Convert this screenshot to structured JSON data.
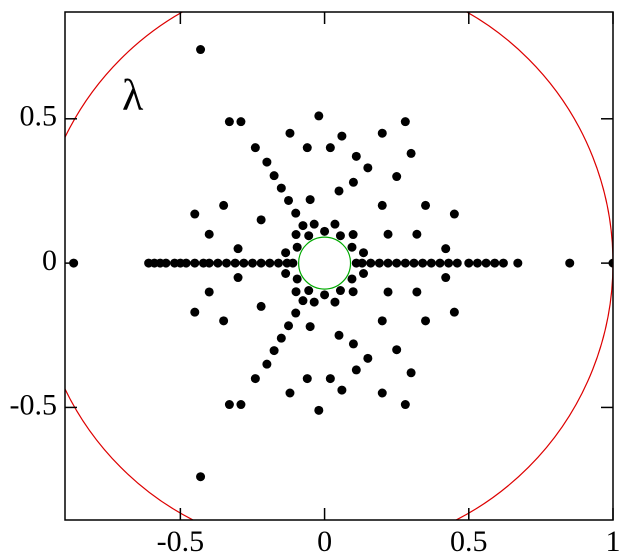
{
  "chart_data": {
    "type": "scatter",
    "annotation": "λ",
    "xlim": [
      -0.9,
      1.0
    ],
    "ylim": [
      -0.89,
      0.87
    ],
    "xticks": [
      -0.5,
      0,
      0.5,
      1
    ],
    "yticks": [
      -0.5,
      0,
      0.5
    ],
    "color": "#000000",
    "circles": [
      {
        "radius": 1,
        "color": "#dd0000"
      },
      {
        "radius": 0.09,
        "color": "#00aa00"
      }
    ],
    "x": [
      -0.87,
      -0.61,
      -0.59,
      -0.57,
      -0.55,
      -0.52,
      -0.5,
      -0.48,
      -0.45,
      -0.42,
      -0.4,
      -0.37,
      -0.34,
      -0.31,
      -0.28,
      -0.25,
      -0.22,
      -0.19,
      -0.16,
      -0.13,
      0.13,
      0.16,
      0.19,
      0.22,
      0.25,
      0.28,
      0.31,
      0.34,
      0.37,
      0.4,
      0.43,
      0.46,
      0.5,
      0.53,
      0.56,
      0.59,
      0.62,
      0.67,
      0.85,
      1.0,
      -0.075,
      -0.1,
      -0.125,
      -0.15,
      -0.175,
      -0.075,
      -0.1,
      -0.125,
      -0.15,
      -0.175,
      0.11,
      0.095,
      0.055,
      0,
      -0.055,
      -0.095,
      -0.11,
      -0.095,
      -0.055,
      0,
      0.055,
      0.095,
      0.135,
      0.099,
      0.036,
      -0.036,
      -0.099,
      -0.135,
      -0.135,
      -0.099,
      -0.036,
      0.036,
      0.099,
      0.135,
      -0.43,
      -0.33,
      -0.29,
      -0.02,
      0.2,
      0.28,
      -0.24,
      -0.06,
      0.02,
      0.11,
      -0.2,
      0.15,
      0.25,
      0.35,
      0.45,
      -0.35,
      -0.45,
      -0.4,
      0.32,
      0.42,
      -0.3,
      0.2,
      -0.22,
      0.05,
      -0.05,
      0.1,
      0.3,
      -0.12,
      0.06,
      0.22,
      -0.43,
      -0.33,
      -0.29,
      -0.02,
      0.2,
      0.28,
      -0.24,
      -0.06,
      0.02,
      0.11,
      -0.2,
      0.15,
      0.25,
      0.35,
      0.45,
      -0.35,
      -0.45,
      -0.4,
      0.32,
      0.42,
      -0.3,
      0.2,
      -0.22,
      0.05,
      -0.05,
      0.1,
      0.3,
      -0.12,
      0.06,
      0.22
    ],
    "y": [
      0,
      0,
      0,
      0,
      0,
      0,
      0,
      0,
      0,
      0,
      0,
      0,
      0,
      0,
      0,
      0,
      0,
      0,
      0,
      0,
      0,
      0,
      0,
      0,
      0,
      0,
      0,
      0,
      0,
      0,
      0,
      0,
      0,
      0,
      0,
      0,
      0,
      0,
      0,
      0,
      0.13,
      0.173,
      0.217,
      0.26,
      0.303,
      -0.13,
      -0.173,
      -0.217,
      -0.26,
      -0.303,
      0,
      0.055,
      0.095,
      0.11,
      0.095,
      0.055,
      0,
      -0.055,
      -0.095,
      -0.11,
      -0.095,
      -0.055,
      0.036,
      0.099,
      0.135,
      0.135,
      0.099,
      0.036,
      -0.036,
      -0.099,
      -0.135,
      -0.135,
      -0.099,
      -0.036,
      0.74,
      0.49,
      0.49,
      0.51,
      0.45,
      0.49,
      0.4,
      0.4,
      0.4,
      0.37,
      0.35,
      0.33,
      0.3,
      0.2,
      0.17,
      0.2,
      0.17,
      0.1,
      0.1,
      0.05,
      0.05,
      0.2,
      0.15,
      0.25,
      0.22,
      0.28,
      0.38,
      0.45,
      0.44,
      0.1,
      -0.74,
      -0.49,
      -0.49,
      -0.51,
      -0.45,
      -0.49,
      -0.4,
      -0.4,
      -0.4,
      -0.37,
      -0.35,
      -0.33,
      -0.3,
      -0.2,
      -0.17,
      -0.2,
      -0.17,
      -0.1,
      -0.1,
      -0.05,
      -0.05,
      -0.2,
      -0.15,
      -0.25,
      -0.22,
      -0.28,
      -0.38,
      -0.45,
      -0.44,
      -0.1
    ]
  }
}
